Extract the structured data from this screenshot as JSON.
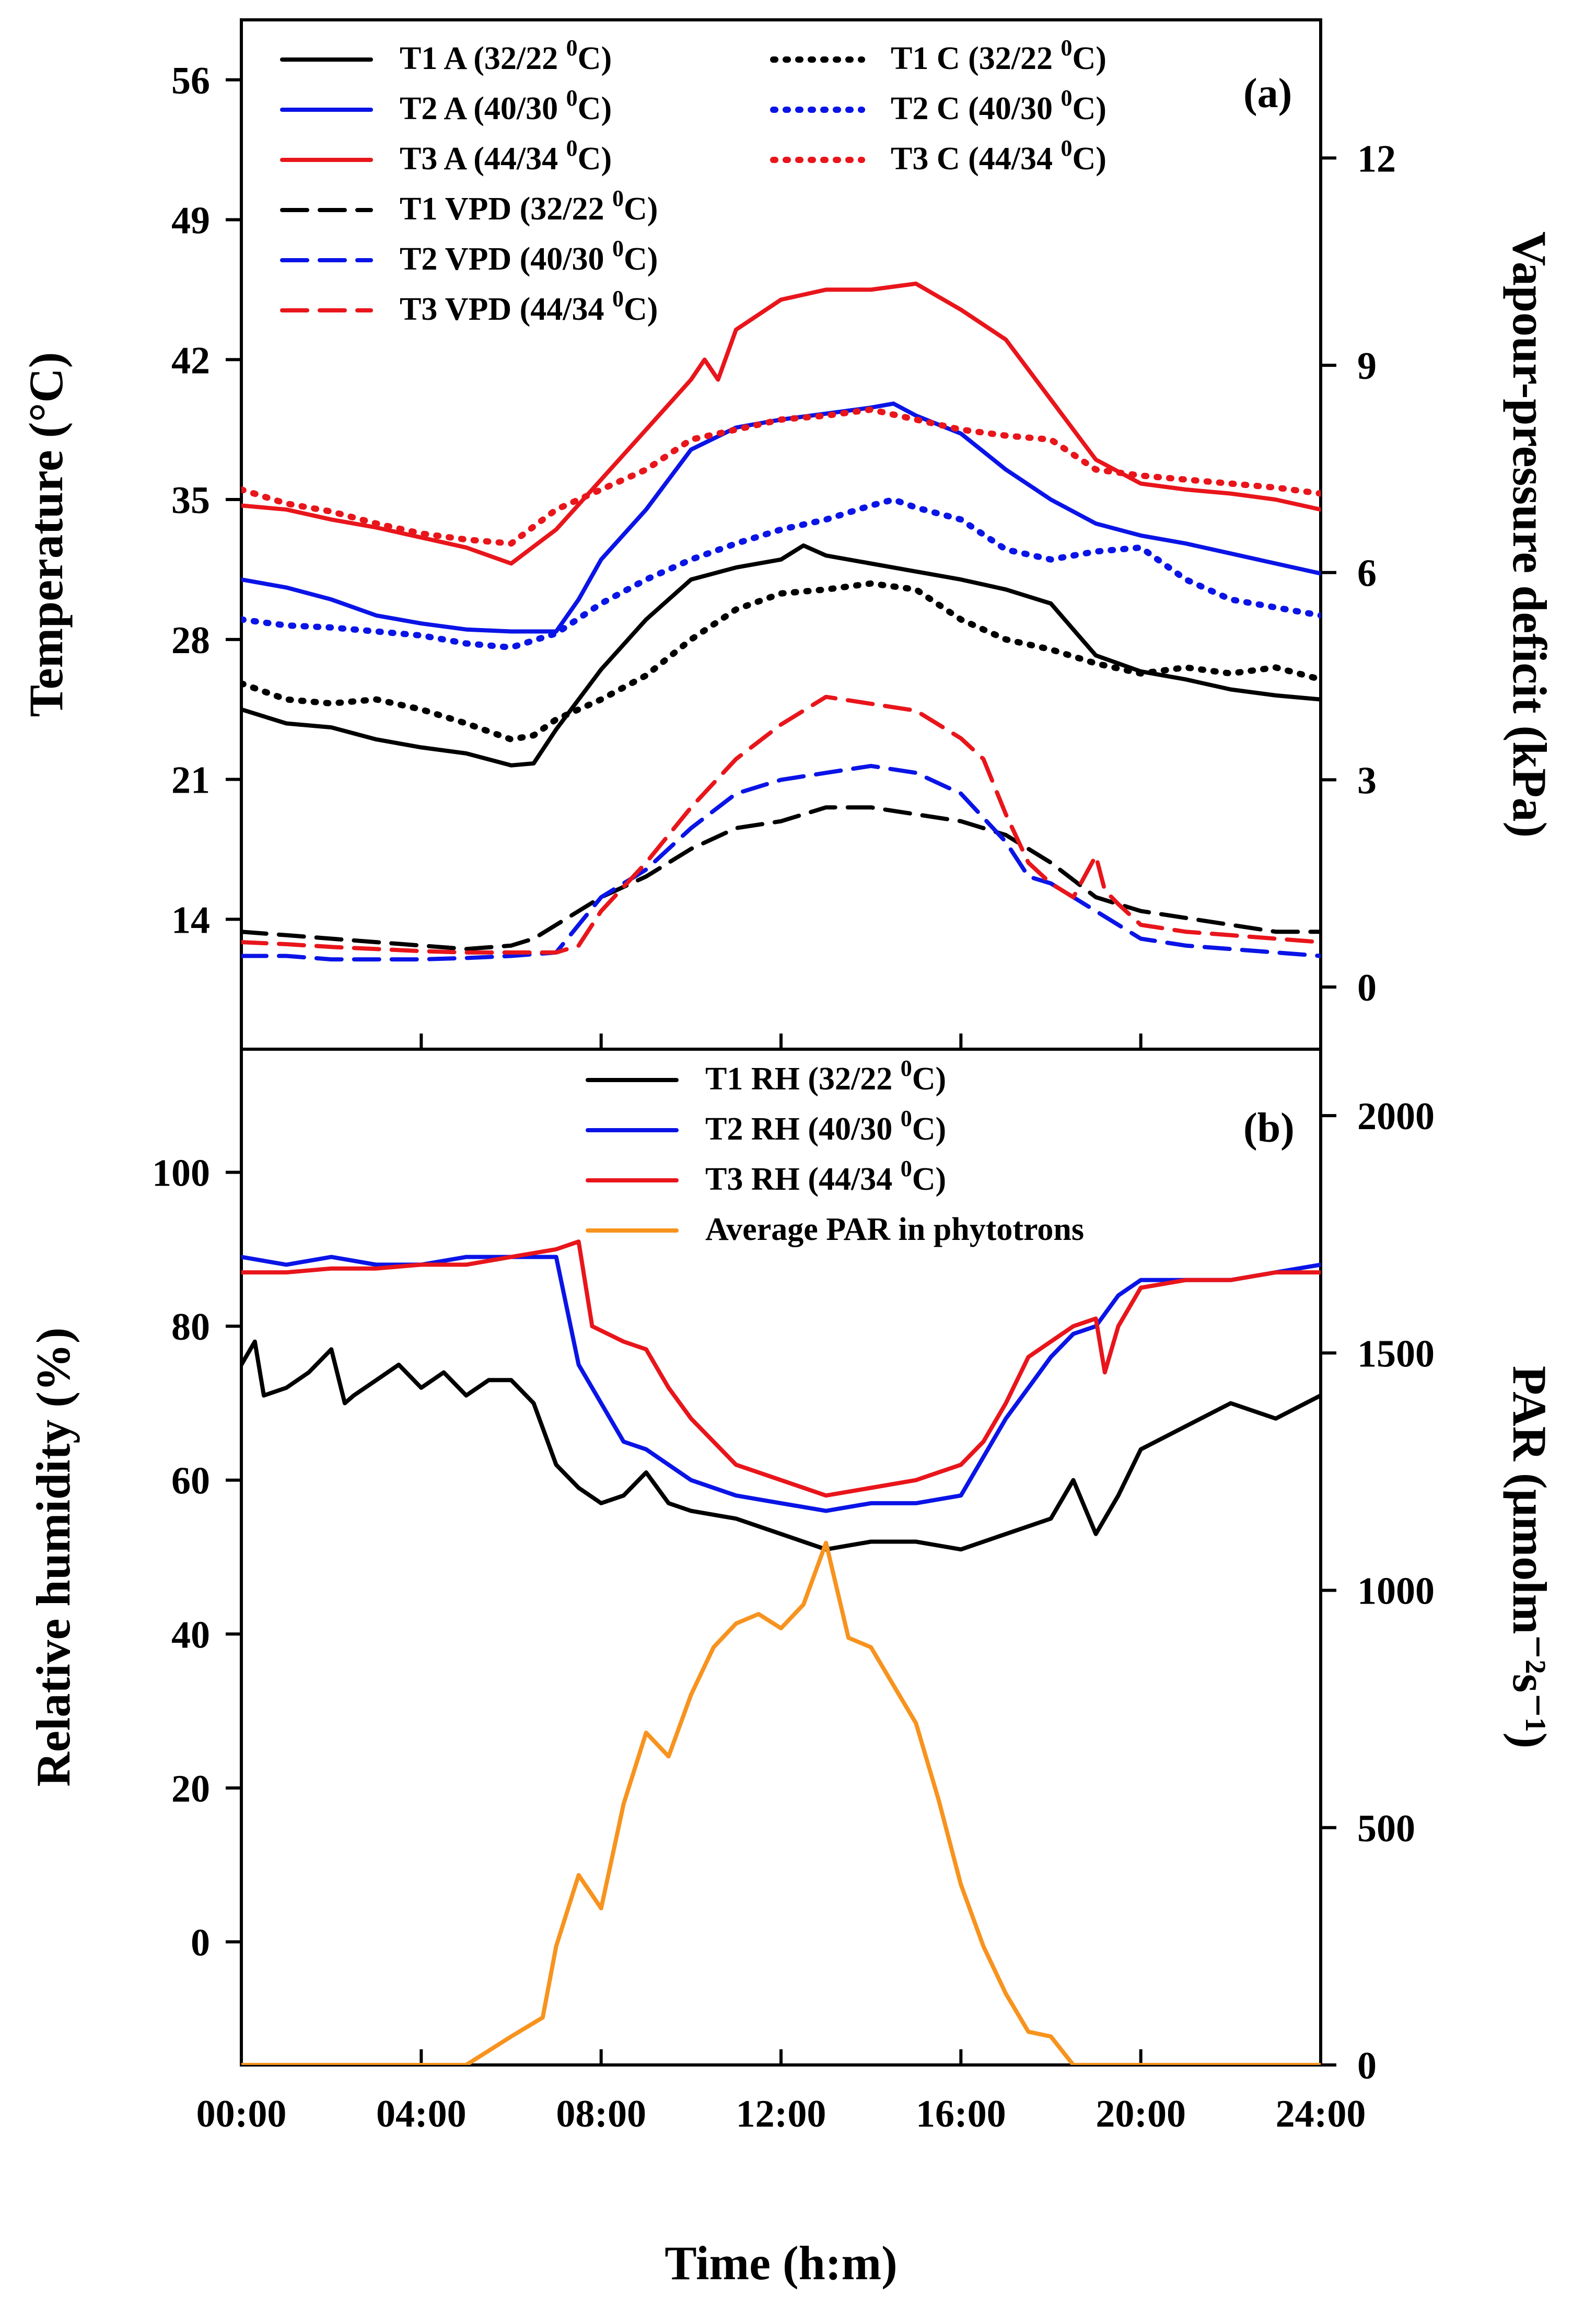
{
  "chart_data": [
    {
      "type": "line",
      "panel_label": "(a)",
      "x_ticks": [
        "00:00",
        "04:00",
        "08:00",
        "12:00",
        "16:00",
        "20:00",
        "24:00"
      ],
      "xlim": [
        0,
        24
      ],
      "ylabel": "Temperature (°C)",
      "ylim": [
        7.5,
        59
      ],
      "yticks": [
        14,
        21,
        28,
        35,
        42,
        49,
        56
      ],
      "y2label": "Vapour-pressure deficit (kPa)",
      "y2lim": [
        -0.9,
        14
      ],
      "y2ticks": [
        0,
        3,
        6,
        9,
        12
      ],
      "legend_placement": "top",
      "series": [
        {
          "name": "T1 A (32/22 ⁰C)",
          "label_main": "T1 A (32/22 ",
          "label_sup": "0",
          "label_end": "C)",
          "color": "#000000",
          "style": "solid",
          "axis": "left",
          "x": [
            0,
            1,
            2,
            3,
            4,
            5,
            6,
            6.5,
            7,
            7.5,
            8,
            9,
            10,
            11,
            12,
            12.5,
            13,
            14,
            15,
            16,
            17,
            18,
            18.5,
            19,
            20,
            21,
            22,
            23,
            24
          ],
          "y": [
            24.5,
            23.8,
            23.6,
            23,
            22.6,
            22.3,
            21.7,
            21.8,
            23.5,
            25,
            26.5,
            29,
            31,
            31.6,
            32,
            32.7,
            32.2,
            31.8,
            31.4,
            31,
            30.5,
            29.8,
            28.5,
            27.2,
            26.4,
            26,
            25.5,
            25.2,
            25
          ]
        },
        {
          "name": "T2 A (40/30 ⁰C)",
          "label_main": "T2 A (40/30 ",
          "label_sup": "0",
          "label_end": "C)",
          "color": "#0a14e6",
          "style": "solid",
          "axis": "left",
          "x": [
            0,
            1,
            2,
            3,
            4,
            5,
            6,
            7,
            7.5,
            8,
            9,
            10,
            11,
            12,
            13,
            14,
            14.5,
            15,
            16,
            17,
            18,
            19,
            20,
            21,
            22,
            23,
            24
          ],
          "y": [
            31,
            30.6,
            30,
            29.2,
            28.8,
            28.5,
            28.4,
            28.4,
            30,
            32,
            34.5,
            37.5,
            38.6,
            39,
            39.3,
            39.6,
            39.8,
            39.2,
            38.3,
            36.5,
            35,
            33.8,
            33.2,
            32.8,
            32.3,
            31.8,
            31.3
          ]
        },
        {
          "name": "T3 A (44/34 ⁰C)",
          "label_main": "T3 A (44/34 ",
          "label_sup": "0",
          "label_end": "C)",
          "color": "#e8151b",
          "style": "solid",
          "axis": "left",
          "x": [
            0,
            1,
            2,
            3,
            4,
            5,
            6,
            7,
            8,
            9,
            10,
            10.3,
            10.6,
            11,
            12,
            13,
            14,
            15,
            16,
            17,
            18,
            19,
            20,
            21,
            22,
            23,
            24
          ],
          "y": [
            34.7,
            34.5,
            34,
            33.6,
            33.1,
            32.6,
            31.8,
            33.5,
            36,
            38.5,
            41,
            42,
            41,
            43.5,
            45,
            45.5,
            45.5,
            45.8,
            44.5,
            43,
            40,
            37,
            35.8,
            35.5,
            35.3,
            35,
            34.5
          ]
        },
        {
          "name": "T1 C (32/22 ⁰C)",
          "label_main": "T1 C (32/22 ",
          "label_sup": "0",
          "label_end": "C)",
          "color": "#000000",
          "style": "dotted",
          "axis": "left",
          "x": [
            0,
            1,
            2,
            3,
            4,
            5,
            6,
            6.5,
            7,
            8,
            9,
            10,
            11,
            12,
            13,
            14,
            15,
            16,
            17,
            18,
            19,
            20,
            21,
            22,
            23,
            24
          ],
          "y": [
            25.8,
            25,
            24.8,
            25,
            24.5,
            23.8,
            23,
            23.2,
            24,
            25,
            26.2,
            28,
            29.5,
            30.3,
            30.5,
            30.8,
            30.5,
            29,
            28,
            27.5,
            26.8,
            26.3,
            26.6,
            26.3,
            26.6,
            26
          ]
        },
        {
          "name": "T2 C (40/30 ⁰C)",
          "label_main": "T2 C (40/30 ",
          "label_sup": "0",
          "label_end": "C)",
          "color": "#0a14e6",
          "style": "dotted",
          "axis": "left",
          "x": [
            0,
            1,
            2,
            3,
            4,
            5,
            6,
            7,
            8,
            9,
            10,
            11,
            12,
            13,
            14,
            14.5,
            15,
            16,
            17,
            18,
            19,
            20,
            21,
            22,
            23,
            24
          ],
          "y": [
            29,
            28.7,
            28.6,
            28.4,
            28.2,
            27.8,
            27.6,
            28.3,
            29.8,
            31,
            32,
            32.8,
            33.5,
            34,
            34.7,
            35,
            34.6,
            34,
            32.5,
            32,
            32.4,
            32.6,
            31,
            30,
            29.6,
            29.2
          ]
        },
        {
          "name": "T3 C (44/34 ⁰C)",
          "label_main": "T3 C (44/34 ",
          "label_sup": "0",
          "label_end": "C)",
          "color": "#e8151b",
          "style": "dotted",
          "axis": "left",
          "x": [
            0,
            1,
            2,
            3,
            4,
            5,
            6,
            7,
            8,
            9,
            10,
            11,
            12,
            13,
            14,
            15,
            16,
            17,
            18,
            19,
            20,
            21,
            22,
            23,
            24
          ],
          "y": [
            35.5,
            34.8,
            34.4,
            33.8,
            33.3,
            33,
            32.8,
            34.5,
            35.5,
            36.5,
            38,
            38.5,
            39,
            39.2,
            39.5,
            39,
            38.5,
            38.2,
            38,
            36.5,
            36.2,
            36,
            35.8,
            35.6,
            35.3
          ]
        },
        {
          "name": "T1 VPD (32/22 ⁰C)",
          "label_main": "T1 VPD (32/22 ",
          "label_sup": "0",
          "label_end": "C)",
          "color": "#000000",
          "style": "dashed",
          "axis": "right",
          "x": [
            0,
            1,
            2,
            3,
            4,
            5,
            6,
            6.5,
            7,
            8,
            9,
            10,
            11,
            12,
            13,
            14,
            15,
            16,
            17,
            18,
            19,
            20,
            21,
            22,
            23,
            24
          ],
          "y": [
            0.8,
            0.75,
            0.7,
            0.65,
            0.6,
            0.55,
            0.6,
            0.7,
            0.9,
            1.3,
            1.6,
            2,
            2.3,
            2.4,
            2.6,
            2.6,
            2.5,
            2.4,
            2.2,
            1.8,
            1.3,
            1.1,
            1,
            0.9,
            0.8,
            0.8
          ]
        },
        {
          "name": "T2 VPD (40/30 ⁰C)",
          "label_main": "T2 VPD (40/30 ",
          "label_sup": "0",
          "label_end": "C)",
          "color": "#0a14e6",
          "style": "dashed",
          "axis": "right",
          "x": [
            0,
            1,
            2,
            3,
            4,
            5,
            6,
            7,
            7.5,
            8,
            9,
            10,
            11,
            12,
            13,
            14,
            15,
            16,
            17,
            17.5,
            18,
            19,
            20,
            21,
            22,
            23,
            24
          ],
          "y": [
            0.45,
            0.45,
            0.4,
            0.4,
            0.4,
            0.42,
            0.45,
            0.5,
            0.9,
            1.3,
            1.7,
            2.3,
            2.8,
            3,
            3.1,
            3.2,
            3.1,
            2.8,
            2.1,
            1.6,
            1.5,
            1.1,
            0.7,
            0.6,
            0.55,
            0.5,
            0.45
          ]
        },
        {
          "name": "T3 VPD (44/34 ⁰C)",
          "label_main": "T3 VPD (44/34 ",
          "label_sup": "0",
          "label_end": "C)",
          "color": "#e8151b",
          "style": "dashed",
          "axis": "right",
          "x": [
            0,
            1,
            2,
            3,
            4,
            5,
            6,
            7,
            7.5,
            8,
            9,
            10,
            11,
            12,
            13,
            14,
            15,
            16,
            16.5,
            17,
            17.5,
            18,
            18.5,
            19,
            19.2,
            19.5,
            20,
            21,
            22,
            23,
            24
          ],
          "y": [
            0.65,
            0.62,
            0.58,
            0.55,
            0.52,
            0.5,
            0.5,
            0.5,
            0.6,
            1.1,
            1.8,
            2.6,
            3.3,
            3.8,
            4.2,
            4.1,
            4,
            3.6,
            3.3,
            2.5,
            1.8,
            1.5,
            1.3,
            1.9,
            1.4,
            1.2,
            0.9,
            0.8,
            0.75,
            0.7,
            0.65
          ]
        }
      ]
    },
    {
      "type": "line",
      "panel_label": "(b)",
      "x_ticks": [
        "00:00",
        "04:00",
        "08:00",
        "12:00",
        "16:00",
        "20:00",
        "24:00"
      ],
      "xlim": [
        0,
        24
      ],
      "xlabel": "Time (h:m)",
      "ylabel": "Relative humidity (%)",
      "ylim": [
        -16,
        116
      ],
      "yticks": [
        0,
        20,
        40,
        60,
        80,
        100
      ],
      "y2label": "PAR (µmolm⁻²s⁻¹)",
      "y2lim": [
        0,
        2140
      ],
      "y2ticks": [
        0,
        500,
        1000,
        1500,
        2000
      ],
      "legend_placement": "top",
      "series": [
        {
          "name": "T1 RH (32/22 ⁰C)",
          "label_main": "T1 RH (32/22 ",
          "label_sup": "0",
          "label_end": "C)",
          "color": "#000000",
          "style": "solid",
          "axis": "left",
          "x": [
            0,
            0.3,
            0.5,
            1,
            1.5,
            2,
            2.3,
            2.5,
            3,
            3.5,
            4,
            4.5,
            5,
            5.5,
            6,
            6.5,
            7,
            7.5,
            8,
            8.5,
            9,
            9.5,
            10,
            11,
            12,
            13,
            14,
            15,
            16,
            17,
            18,
            18.5,
            19,
            19.5,
            20,
            21,
            22,
            23,
            24
          ],
          "y": [
            75,
            78,
            71,
            72,
            74,
            77,
            70,
            71,
            73,
            75,
            72,
            74,
            71,
            73,
            73,
            70,
            62,
            59,
            57,
            58,
            61,
            57,
            56,
            55,
            53,
            51,
            52,
            52,
            51,
            53,
            55,
            60,
            53,
            58,
            64,
            67,
            70,
            68,
            71
          ]
        },
        {
          "name": "T2 RH (40/30 ⁰C)",
          "label_main": "T2 RH (40/30 ",
          "label_sup": "0",
          "label_end": "C)",
          "color": "#0a14e6",
          "style": "solid",
          "axis": "left",
          "x": [
            0,
            1,
            2,
            3,
            4,
            5,
            6,
            7,
            7.5,
            8,
            8.5,
            9,
            9.5,
            10,
            11,
            12,
            13,
            14,
            15,
            16,
            16.5,
            17,
            17.5,
            18,
            18.5,
            19,
            19.5,
            20,
            21,
            22,
            23,
            24
          ],
          "y": [
            89,
            88,
            89,
            88,
            88,
            89,
            89,
            89,
            75,
            70,
            65,
            64,
            62,
            60,
            58,
            57,
            56,
            57,
            57,
            58,
            63,
            68,
            72,
            76,
            79,
            80,
            84,
            86,
            86,
            86,
            87,
            88
          ]
        },
        {
          "name": "T3 RH (44/34 ⁰C)",
          "label_main": "T3 RH (44/34 ",
          "label_sup": "0",
          "label_end": "C)",
          "color": "#e8151b",
          "style": "solid",
          "axis": "left",
          "x": [
            0,
            1,
            2,
            3,
            4,
            5,
            6,
            7,
            7.5,
            7.8,
            8.5,
            9,
            9.5,
            10,
            11,
            12,
            13,
            14,
            15,
            16,
            16.5,
            17,
            17.5,
            18,
            18.5,
            19,
            19.2,
            19.5,
            20,
            21,
            22,
            23,
            24
          ],
          "y": [
            87,
            87,
            87.5,
            87.5,
            88,
            88,
            89,
            90,
            91,
            80,
            78,
            77,
            72,
            68,
            62,
            60,
            58,
            59,
            60,
            62,
            65,
            70,
            76,
            78,
            80,
            81,
            74,
            80,
            85,
            86,
            86,
            87,
            87
          ]
        },
        {
          "name": "Average PAR in phytotrons",
          "color": "#f7931e",
          "style": "solid",
          "axis": "right",
          "x": [
            0,
            4,
            5,
            5.5,
            6,
            6.7,
            7,
            7.5,
            8,
            8.5,
            9,
            9.5,
            10,
            10.5,
            11,
            11.5,
            12,
            12.5,
            13,
            13.5,
            14,
            14.5,
            15,
            15.5,
            16,
            16.5,
            17,
            17.5,
            18,
            18.5,
            19,
            20,
            24
          ],
          "y": [
            0,
            0,
            0,
            30,
            60,
            100,
            250,
            400,
            330,
            550,
            700,
            650,
            780,
            880,
            930,
            950,
            920,
            970,
            1100,
            900,
            880,
            800,
            720,
            560,
            380,
            250,
            150,
            70,
            60,
            0,
            0,
            0,
            0
          ]
        }
      ]
    }
  ]
}
